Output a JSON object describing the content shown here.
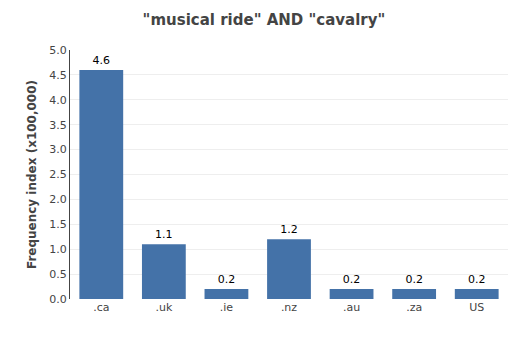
{
  "chart_data": {
    "type": "bar",
    "title": "\"musical ride\" AND \"cavalry\"",
    "categories": [
      ".ca",
      ".uk",
      ".ie",
      ".nz",
      ".au",
      ".za",
      "US"
    ],
    "values": [
      4.6,
      1.1,
      0.2,
      1.2,
      0.2,
      0.2,
      0.2
    ],
    "color": "#4472a8",
    "ylabel": "Frequency index (x100,000)",
    "ylim": [
      0,
      5.0
    ],
    "yticks": [
      {
        "value": 0,
        "label": "0.0"
      },
      0.5,
      {
        "value": 1,
        "label": "1.0"
      },
      1.5,
      {
        "value": 2,
        "label": "2.0"
      },
      2.5,
      {
        "value": 3,
        "label": "3.0"
      },
      3.5,
      {
        "value": 4,
        "label": "4.0"
      },
      4.5,
      {
        "value": 5,
        "label": "5.0"
      }
    ],
    "grid": true,
    "data_labels": true
  }
}
